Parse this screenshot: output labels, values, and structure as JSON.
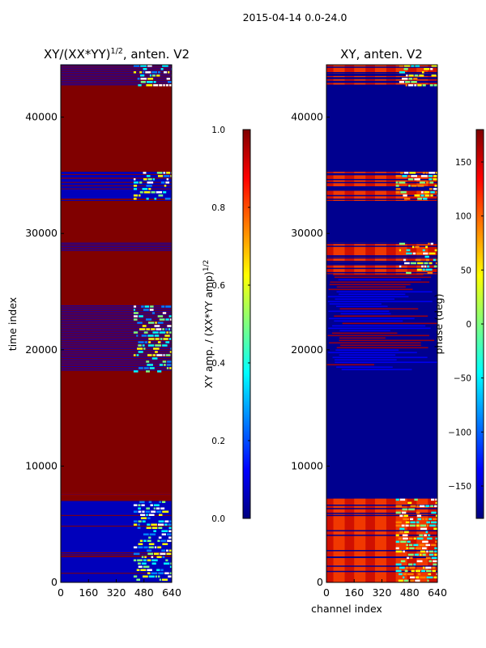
{
  "suptitle": "2015-04-14 0.0-24.0",
  "colors": {
    "jet": [
      "#00007f",
      "#0000ff",
      "#007fff",
      "#00ffff",
      "#7fff7f",
      "#ffff00",
      "#ff7f00",
      "#ff0000",
      "#7f0000"
    ],
    "background_red": "#800000",
    "background_blue": "#00008f"
  },
  "chart_data": [
    {
      "type": "heatmap",
      "title": "XY/(XX*YY)",
      "title_sup": "1/2",
      "title_suffix": ", anten. V2",
      "xlabel": "",
      "ylabel": "time index",
      "xlim": [
        0,
        640
      ],
      "ylim": [
        0,
        44500
      ],
      "xticks": [
        0,
        160,
        320,
        480,
        640
      ],
      "yticks": [
        0,
        10000,
        20000,
        30000,
        40000
      ],
      "background": "red",
      "bands": [
        {
          "y0": 0,
          "y1": 7000,
          "value": "blue",
          "hot_channels": [
            420,
            640
          ]
        },
        {
          "y0": 7000,
          "y1": 7500,
          "value": "red"
        },
        {
          "y0": 7500,
          "y1": 7700,
          "value": "blue"
        },
        {
          "y0": 18200,
          "y1": 23800,
          "value": "striped",
          "hot_channels": [
            420,
            640
          ]
        },
        {
          "y0": 28500,
          "y1": 29200,
          "value": "striped"
        },
        {
          "y0": 32800,
          "y1": 35300,
          "value": "blue",
          "hot_channels": [
            420,
            640
          ]
        },
        {
          "y0": 42800,
          "y1": 44500,
          "value": "striped",
          "hot_channels": [
            420,
            640
          ]
        }
      ],
      "colorbar": {
        "label": "XY amp. / (XX*YY amp)",
        "label_sup": "1/2",
        "range": [
          0.0,
          1.0
        ],
        "ticks": [
          "0.0",
          "0.2",
          "0.4",
          "0.6",
          "0.8",
          "1.0"
        ]
      }
    },
    {
      "type": "heatmap",
      "title": "XY, anten. V2",
      "xlabel": "channel index",
      "ylabel": "",
      "xlim": [
        0,
        640
      ],
      "ylim": [
        0,
        44500
      ],
      "xticks": [
        0,
        160,
        320,
        480,
        640
      ],
      "yticks": [
        0,
        10000,
        20000,
        30000,
        40000
      ],
      "background": "blue",
      "bands": [
        {
          "y0": 0,
          "y1": 7200,
          "value": "phase-red",
          "hot_channels": [
            400,
            640
          ]
        },
        {
          "y0": 18200,
          "y1": 26500,
          "value": "phase-mixed"
        },
        {
          "y0": 26500,
          "y1": 29200,
          "value": "phase-red",
          "hot_channels": [
            420,
            640
          ]
        },
        {
          "y0": 32800,
          "y1": 35300,
          "value": "phase-red",
          "hot_channels": [
            400,
            640
          ]
        },
        {
          "y0": 42800,
          "y1": 44500,
          "value": "phase-red",
          "hot_channels": [
            420,
            640
          ]
        }
      ],
      "colorbar": {
        "label": "phase (deg)",
        "range": [
          -180,
          180
        ],
        "ticks": [
          "150",
          "100",
          "50",
          "0",
          "−50",
          "−100",
          "−150"
        ]
      }
    }
  ]
}
